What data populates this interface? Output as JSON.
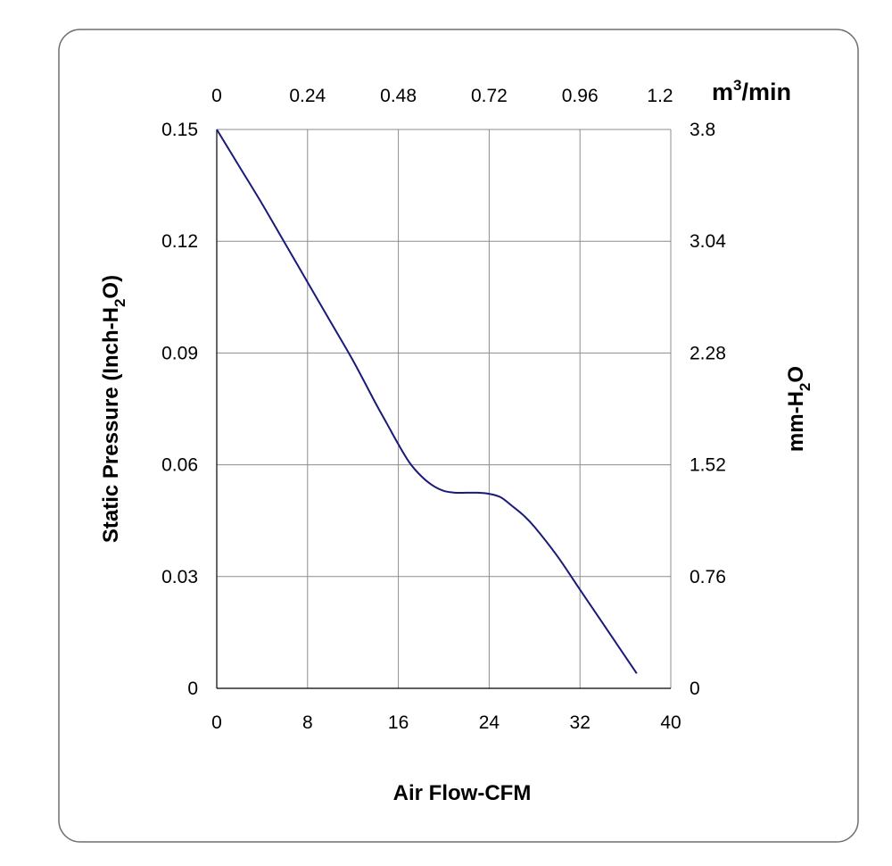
{
  "colors": {
    "curve": "#1a1a7a",
    "grid": "#8c8c8c",
    "frame": "#6e6e6e"
  },
  "chart_data": {
    "type": "line",
    "title": "",
    "xlabel": "Air Flow-CFM",
    "ylabel": "Static Pressure (Inch-H2O)",
    "ylabel_parts": [
      "Static Pressure (Inch-H",
      "2",
      "O)"
    ],
    "top_axis_label": "m3/min",
    "top_axis_label_parts": [
      "m",
      "3",
      "/min"
    ],
    "right_axis_label": "mm-H2O",
    "right_axis_label_parts": [
      "mm-H",
      "2",
      "O"
    ],
    "xlim": [
      0,
      40
    ],
    "ylim": [
      0,
      0.15
    ],
    "grid": true,
    "x_ticks": [
      "0",
      "8",
      "16",
      "24",
      "32",
      "40"
    ],
    "y_ticks": [
      "0",
      "0.03",
      "0.06",
      "0.09",
      "0.12",
      "0.15"
    ],
    "top_ticks": [
      "0",
      "0.24",
      "0.48",
      "0.72",
      "0.96",
      "1.2"
    ],
    "right_ticks": [
      "0",
      "0.76",
      "1.52",
      "2.28",
      "3.04",
      "3.8"
    ],
    "series": [
      {
        "x": [
          0,
          2,
          4,
          6,
          8,
          10,
          12,
          14,
          15,
          16,
          17,
          18,
          19,
          20,
          21,
          22,
          23,
          24,
          25,
          26,
          27,
          28,
          30,
          32,
          34,
          36,
          37
        ],
        "y": [
          0.15,
          0.14,
          0.13,
          0.1195,
          0.109,
          0.0985,
          0.088,
          0.0765,
          0.071,
          0.0655,
          0.0605,
          0.057,
          0.0545,
          0.053,
          0.0525,
          0.0525,
          0.0525,
          0.0522,
          0.0513,
          0.049,
          0.0465,
          0.0433,
          0.0355,
          0.0265,
          0.0175,
          0.0085,
          0.004
        ]
      }
    ]
  }
}
